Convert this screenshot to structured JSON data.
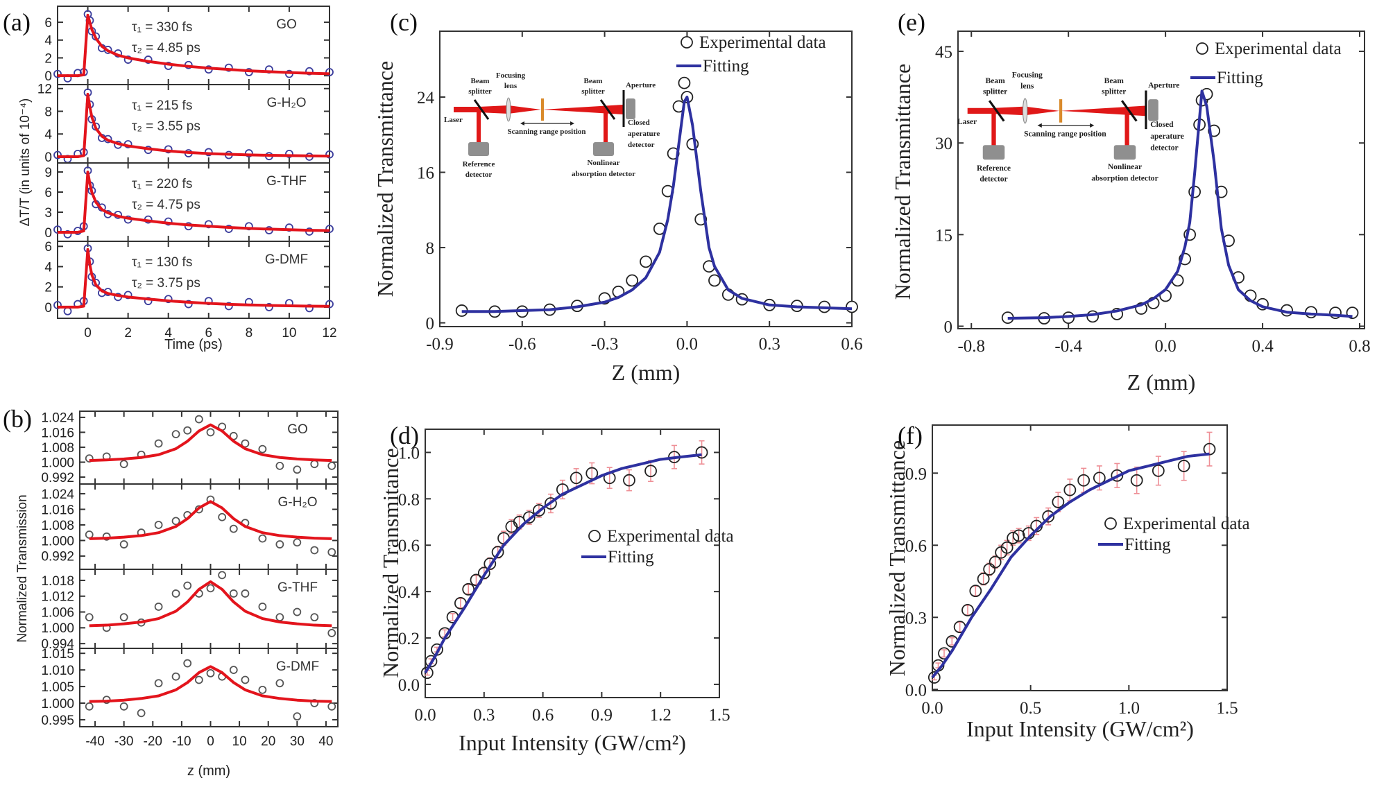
{
  "colors": {
    "fit_red": "#e3141c",
    "exp_blue": "#3a3c9c",
    "fit_blue": "#2e31a0",
    "exp_gray": "#555555",
    "exp_black": "#222222",
    "error_pink": "#ee8f96",
    "beam_red": "#e01818",
    "sample_orange": "#d98a2b",
    "detector_gray": "#8f8f8f"
  },
  "chart_data": [
    {
      "panel": "(a)",
      "type": "scatter",
      "xlabel": "Time (ps)",
      "ylabel": "ΔT/T (in units of 10⁻⁴)",
      "xlim": [
        -1.5,
        12
      ],
      "xticks": [
        "0",
        "2",
        "4",
        "6",
        "8",
        "10",
        "12"
      ],
      "x": [
        -1.5,
        -1,
        -0.5,
        -0.2,
        0,
        0.1,
        0.2,
        0.4,
        0.7,
        1,
        1.5,
        2,
        3,
        4,
        5,
        6,
        7,
        8,
        9,
        10,
        11,
        12
      ],
      "subplots": [
        {
          "label": "GO",
          "tau1": "τ₁ = 330 fs",
          "tau2": "τ₂ = 4.85 ps",
          "ylim": [
            -1,
            7.8
          ],
          "yticks": [
            "0",
            "2",
            "4",
            "6"
          ],
          "fit": [
            0,
            0,
            0,
            0.1,
            6.8,
            6.0,
            5.2,
            4.2,
            3.3,
            2.8,
            2.3,
            2.0,
            1.6,
            1.3,
            1.05,
            0.85,
            0.7,
            0.55,
            0.45,
            0.35,
            0.28,
            0.22
          ],
          "exp": [
            0.2,
            -0.3,
            0.3,
            0.4,
            6.9,
            6.2,
            5.0,
            4.4,
            3.1,
            2.9,
            2.5,
            1.8,
            1.8,
            1.1,
            1.2,
            0.7,
            0.9,
            0.4,
            0.7,
            0.2,
            0.5,
            0.4
          ]
        },
        {
          "label": "G-H₂O",
          "tau1": "τ₁ = 215 fs",
          "tau2": "τ₂ = 3.55 ps",
          "ylim": [
            -1.1,
            12.7
          ],
          "yticks": [
            "0",
            "4",
            "8",
            "12"
          ],
          "fit": [
            0,
            0,
            0,
            0.2,
            11,
            8.8,
            7,
            5,
            3.6,
            2.9,
            2.3,
            1.9,
            1.4,
            1.0,
            0.75,
            0.55,
            0.42,
            0.32,
            0.25,
            0.2,
            0.15,
            0.1
          ],
          "exp": [
            0.3,
            -0.4,
            0.5,
            0.8,
            11.3,
            9.2,
            6.6,
            5.3,
            3.3,
            3.1,
            2.1,
            2.2,
            1.2,
            1.3,
            0.6,
            0.8,
            0.3,
            0.6,
            0.1,
            0.5,
            0.0,
            0.4
          ]
        },
        {
          "label": "G-THF",
          "tau1": "τ₁ = 220 fs",
          "tau2": "τ₂ = 4.75 ps",
          "ylim": [
            -1.35,
            10.35
          ],
          "yticks": [
            "0",
            "3",
            "6",
            "9"
          ],
          "fit": [
            0,
            0,
            0,
            0.2,
            9,
            7.3,
            6,
            4.5,
            3.4,
            2.9,
            2.4,
            2.1,
            1.7,
            1.35,
            1.1,
            0.9,
            0.72,
            0.58,
            0.47,
            0.38,
            0.3,
            0.25
          ],
          "exp": [
            0.4,
            -0.3,
            0.2,
            0.9,
            9.2,
            7.0,
            6.2,
            4.2,
            3.7,
            2.7,
            2.6,
            1.9,
            1.9,
            1.6,
            0.9,
            1.2,
            0.5,
            0.9,
            0.3,
            0.7,
            0.1,
            0.5
          ]
        },
        {
          "label": "G-DMF",
          "tau1": "τ₁ = 130 fs",
          "tau2": "τ₂ = 3.75 ps",
          "ylim": [
            -1.1,
            6.5
          ],
          "yticks": [
            "0",
            "2",
            "4",
            "6"
          ],
          "fit": [
            0,
            0,
            0,
            0.1,
            5.7,
            4.2,
            3.2,
            2.2,
            1.6,
            1.35,
            1.15,
            1.0,
            0.8,
            0.62,
            0.48,
            0.37,
            0.28,
            0.22,
            0.17,
            0.13,
            0.1,
            0.08
          ],
          "exp": [
            0.2,
            -0.4,
            0.3,
            0.6,
            5.8,
            4.5,
            3.0,
            2.4,
            1.4,
            1.5,
            1.0,
            1.2,
            0.6,
            0.8,
            0.3,
            0.6,
            0.1,
            0.5,
            0.0,
            0.4,
            -0.1,
            0.3
          ]
        }
      ]
    },
    {
      "panel": "(b)",
      "type": "scatter",
      "xlabel": "z (mm)",
      "ylabel": "Normalized Transmission",
      "xlim": [
        -45.3,
        44.1
      ],
      "xticks": [
        "-40",
        "-30",
        "-20",
        "-10",
        "0",
        "10",
        "20",
        "30",
        "40"
      ],
      "x": [
        -42,
        -36,
        -30,
        -24,
        -18,
        -12,
        -8,
        -4,
        0,
        4,
        8,
        12,
        18,
        24,
        30,
        36,
        42
      ],
      "subplots": [
        {
          "label": "GO",
          "ylim": [
            0.9883,
            1.0273
          ],
          "yticks": [
            "0.992",
            "1.000",
            "1.008",
            "1.016",
            "1.024"
          ],
          "fit": [
            1.0009,
            1.0012,
            1.0017,
            1.0025,
            1.004,
            1.0072,
            1.0112,
            1.0167,
            1.02,
            1.0167,
            1.0112,
            1.0072,
            1.004,
            1.0025,
            1.0017,
            1.0012,
            1.0009
          ],
          "exp": [
            1.002,
            1.003,
            0.999,
            1.004,
            1.01,
            1.015,
            1.017,
            1.023,
            1.016,
            1.019,
            1.014,
            1.01,
            1.007,
            0.998,
            0.996,
            0.999,
            0.998
          ]
        },
        {
          "label": "G-H₂O",
          "ylim": [
            0.9852,
            1.029
          ],
          "yticks": [
            "0.992",
            "1.000",
            "1.008",
            "1.016",
            "1.024"
          ],
          "fit": [
            1.0009,
            1.0012,
            1.0017,
            1.0025,
            1.004,
            1.0072,
            1.0112,
            1.0167,
            1.02,
            1.0167,
            1.0112,
            1.0072,
            1.004,
            1.0025,
            1.0017,
            1.0012,
            1.0009
          ],
          "exp": [
            1.003,
            1.002,
            0.998,
            1.004,
            1.008,
            1.01,
            1.013,
            1.016,
            1.021,
            1.012,
            1.006,
            1.009,
            1.001,
            0.998,
            0.999,
            0.995,
            0.994
          ]
        },
        {
          "label": "G-THF",
          "ylim": [
            0.9922,
            1.0222
          ],
          "yticks": [
            "0.994",
            "1.000",
            "1.006",
            "1.012",
            "1.018"
          ],
          "fit": [
            1.0008,
            1.001,
            1.0015,
            1.0022,
            1.0035,
            1.0063,
            1.0098,
            1.0146,
            1.0175,
            1.0146,
            1.0098,
            1.0063,
            1.0035,
            1.0022,
            1.0015,
            1.001,
            1.0008
          ],
          "exp": [
            1.004,
            1.0,
            1.004,
            1.002,
            1.008,
            1.013,
            1.016,
            1.013,
            1.015,
            1.02,
            1.013,
            1.013,
            1.008,
            1.004,
            1.006,
            1.004,
            0.998
          ]
        },
        {
          "label": "G-DMF",
          "ylim": [
            0.9929,
            1.0165
          ],
          "yticks": [
            "0.995",
            "1.000",
            "1.005",
            "1.010",
            "1.015"
          ],
          "fit": [
            1.0005,
            1.0006,
            1.0009,
            1.0014,
            1.0022,
            1.004,
            1.0062,
            1.0092,
            1.011,
            1.0092,
            1.0062,
            1.004,
            1.0022,
            1.0014,
            1.0009,
            1.0006,
            1.0005
          ],
          "exp": [
            0.999,
            1.001,
            0.999,
            0.997,
            1.006,
            1.008,
            1.012,
            1.007,
            1.009,
            1.008,
            1.01,
            1.007,
            1.004,
            1.006,
            0.996,
            1.0,
            0.999
          ]
        }
      ]
    },
    {
      "panel": "(c)",
      "type": "scatter",
      "xlabel": "Z (mm)",
      "ylabel": "Normalized Transmittance",
      "xlim": [
        -0.9,
        0.6
      ],
      "ylim": [
        -0.4,
        31
      ],
      "xticks": [
        "-0.9",
        "-0.6",
        "-0.3",
        "0.0",
        "0.3",
        "0.6"
      ],
      "yticks": [
        "0",
        "8",
        "16",
        "24"
      ],
      "legend": {
        "position": "top-right",
        "exp": "Experimental data",
        "fit": "Fitting"
      },
      "x": [
        -0.82,
        -0.7,
        -0.6,
        -0.5,
        -0.4,
        -0.3,
        -0.25,
        -0.2,
        -0.15,
        -0.1,
        -0.07,
        -0.05,
        -0.03,
        -0.01,
        0,
        0.02,
        0.05,
        0.08,
        0.1,
        0.15,
        0.2,
        0.3,
        0.4,
        0.5,
        0.6
      ],
      "exp": [
        1.3,
        1.2,
        1.2,
        1.4,
        1.8,
        2.6,
        3.3,
        4.5,
        6.5,
        10,
        14,
        18,
        23,
        25.5,
        24,
        19,
        11,
        6,
        4.5,
        3,
        2.5,
        1.9,
        1.8,
        1.7,
        1.7
      ],
      "fit": [
        1.2,
        1.2,
        1.3,
        1.4,
        1.7,
        2.2,
        2.7,
        3.5,
        4.8,
        7.5,
        11,
        14.5,
        19,
        23.5,
        24,
        21,
        14,
        8,
        6,
        3.5,
        2.6,
        1.9,
        1.7,
        1.6,
        1.5
      ]
    },
    {
      "panel": "(d)",
      "type": "scatter",
      "xlabel": "Input Intensity (GW/cm²)",
      "ylabel": "Normalized Transmitance",
      "xlim": [
        0,
        1.5
      ],
      "ylim": [
        -0.057,
        1.1
      ],
      "xticks": [
        "0.0",
        "0.3",
        "0.6",
        "0.9",
        "1.2",
        "1.5"
      ],
      "yticks": [
        "0.0",
        "0.2",
        "0.4",
        "0.6",
        "0.8",
        "1.0"
      ],
      "legend": {
        "position": "center-right",
        "exp": "Experimental data",
        "fit": "Fitting"
      },
      "exp_x": [
        0.01,
        0.03,
        0.06,
        0.1,
        0.14,
        0.18,
        0.22,
        0.26,
        0.3,
        0.33,
        0.37,
        0.4,
        0.44,
        0.48,
        0.53,
        0.58,
        0.64,
        0.7,
        0.77,
        0.85,
        0.94,
        1.04,
        1.15,
        1.27,
        1.41
      ],
      "exp": [
        0.05,
        0.1,
        0.15,
        0.22,
        0.29,
        0.35,
        0.41,
        0.45,
        0.48,
        0.52,
        0.57,
        0.63,
        0.68,
        0.7,
        0.72,
        0.75,
        0.78,
        0.84,
        0.89,
        0.91,
        0.89,
        0.88,
        0.92,
        0.98,
        1.0
      ],
      "err": [
        0.01,
        0.01,
        0.01,
        0.015,
        0.015,
        0.02,
        0.02,
        0.02,
        0.025,
        0.025,
        0.025,
        0.03,
        0.03,
        0.03,
        0.03,
        0.03,
        0.04,
        0.04,
        0.04,
        0.045,
        0.045,
        0.045,
        0.045,
        0.05,
        0.05
      ],
      "fit_x": [
        0,
        0.05,
        0.1,
        0.2,
        0.3,
        0.4,
        0.5,
        0.6,
        0.7,
        0.8,
        0.9,
        1.0,
        1.1,
        1.2,
        1.3,
        1.41
      ],
      "fit": [
        0.05,
        0.12,
        0.2,
        0.33,
        0.47,
        0.6,
        0.69,
        0.76,
        0.82,
        0.86,
        0.9,
        0.93,
        0.95,
        0.97,
        0.98,
        0.99
      ]
    },
    {
      "panel": "(e)",
      "type": "scatter",
      "xlabel": "Z (mm)",
      "ylabel": "Normalized Transmittance",
      "xlim": [
        -0.855,
        0.82
      ],
      "ylim": [
        -0.4,
        48.3
      ],
      "xticks": [
        "-0.8",
        "-0.4",
        "0.0",
        "0.4",
        "0.8"
      ],
      "yticks": [
        "0",
        "15",
        "30",
        "45"
      ],
      "legend": {
        "position": "top-right",
        "exp": "Experimental data",
        "fit": "Fitting"
      },
      "x": [
        -0.65,
        -0.5,
        -0.4,
        -0.3,
        -0.2,
        -0.1,
        -0.05,
        0,
        0.05,
        0.08,
        0.1,
        0.12,
        0.14,
        0.15,
        0.17,
        0.2,
        0.23,
        0.26,
        0.3,
        0.35,
        0.4,
        0.5,
        0.6,
        0.7,
        0.77
      ],
      "exp": [
        1.4,
        1.3,
        1.4,
        1.6,
        2.0,
        2.9,
        3.8,
        5,
        7.5,
        11,
        15,
        22,
        33,
        37,
        38,
        32,
        22,
        14,
        8,
        5,
        3.6,
        2.6,
        2.3,
        2.2,
        2.2
      ],
      "fit": [
        1.3,
        1.4,
        1.6,
        1.9,
        2.5,
        3.5,
        4.5,
        6,
        9,
        13,
        17,
        25,
        34,
        38.5,
        36,
        27,
        16,
        10,
        6,
        4.2,
        3.2,
        2.3,
        2,
        1.8,
        1.6
      ]
    },
    {
      "panel": "(f)",
      "type": "scatter",
      "xlabel": "Input Intensity (GW/cm²)",
      "ylabel": "Normalized Transmittance",
      "xlim": [
        0,
        1.5
      ],
      "ylim": [
        -0.005,
        1.1
      ],
      "xticks": [
        "0.0",
        "0.5",
        "1.0",
        "1.5"
      ],
      "yticks": [
        "0.0",
        "0.3",
        "0.6",
        "0.9"
      ],
      "legend": {
        "position": "center-right",
        "exp": "Experimental data",
        "fit": "Fitting"
      },
      "exp_x": [
        0.01,
        0.03,
        0.06,
        0.1,
        0.14,
        0.18,
        0.22,
        0.26,
        0.29,
        0.32,
        0.35,
        0.38,
        0.41,
        0.44,
        0.49,
        0.53,
        0.59,
        0.64,
        0.7,
        0.77,
        0.85,
        0.94,
        1.04,
        1.15,
        1.28,
        1.41
      ],
      "exp": [
        0.05,
        0.1,
        0.15,
        0.2,
        0.26,
        0.33,
        0.41,
        0.46,
        0.5,
        0.53,
        0.57,
        0.59,
        0.63,
        0.64,
        0.65,
        0.68,
        0.72,
        0.78,
        0.83,
        0.87,
        0.88,
        0.89,
        0.87,
        0.91,
        0.93,
        1.0
      ],
      "err": [
        0.01,
        0.01,
        0.015,
        0.015,
        0.02,
        0.02,
        0.02,
        0.025,
        0.025,
        0.025,
        0.03,
        0.03,
        0.03,
        0.03,
        0.03,
        0.035,
        0.035,
        0.04,
        0.045,
        0.05,
        0.05,
        0.05,
        0.055,
        0.06,
        0.06,
        0.07
      ],
      "fit_x": [
        0,
        0.05,
        0.1,
        0.2,
        0.3,
        0.4,
        0.5,
        0.6,
        0.7,
        0.8,
        0.9,
        1.0,
        1.1,
        1.2,
        1.3,
        1.41
      ],
      "fit": [
        0.05,
        0.1,
        0.16,
        0.3,
        0.42,
        0.55,
        0.64,
        0.72,
        0.78,
        0.83,
        0.87,
        0.91,
        0.93,
        0.95,
        0.97,
        0.98
      ]
    }
  ],
  "inset": {
    "beam_splitter_1": [
      "Beam",
      "splitter"
    ],
    "focusing_lens": [
      "Focusing",
      "lens"
    ],
    "laser": [
      "Laser"
    ],
    "scanning_range": [
      "Scanning range position"
    ],
    "reference_detector": [
      "Reference",
      "detector"
    ],
    "beam_splitter_2": [
      "Beam",
      "splitter"
    ],
    "aperture": [
      "Aperture"
    ],
    "closed_aperture_detector": [
      "Closed",
      "aperature",
      "detector"
    ],
    "nonlinear_detector": [
      "Nonlinear",
      "absorption detector"
    ]
  }
}
